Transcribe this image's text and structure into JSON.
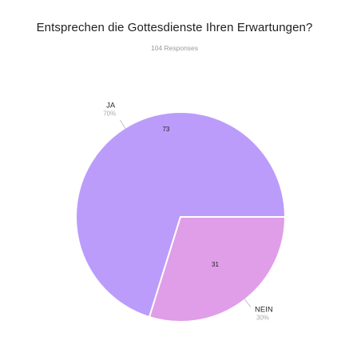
{
  "chart_data": {
    "type": "pie",
    "title": "Entsprechen die Gottesdienste Ihren Erwartungen?",
    "subtitle": "104 Responses",
    "slices": [
      {
        "label": "JA",
        "value": 73,
        "percent_label": "70%",
        "color": "#bb9cfb"
      },
      {
        "label": "NEIN",
        "value": 31,
        "percent_label": "30%",
        "color": "#e09de8"
      }
    ]
  }
}
